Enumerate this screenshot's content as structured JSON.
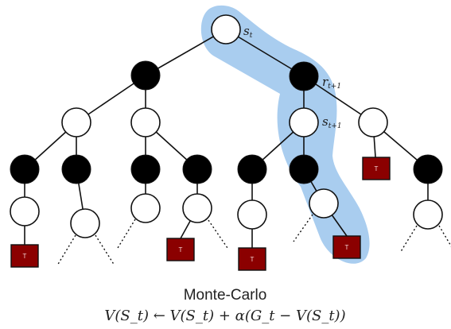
{
  "labels": {
    "s_t": {
      "main": "s",
      "sub": "t"
    },
    "r_t1": {
      "main": "r",
      "sub": "t+1"
    },
    "s_t1": {
      "main": "s",
      "sub": "t+1"
    }
  },
  "terminal_label": "T",
  "caption": {
    "title": "Monte-Carlo",
    "equation": "V(S_t) ← V(S_t) + α(G_t − V(S_t))"
  },
  "colors": {
    "highlight": "#a9cdef",
    "state_fill": "#ffffff",
    "action_fill": "#000000",
    "terminal_fill": "#8b0000",
    "edge": "#111111"
  }
}
